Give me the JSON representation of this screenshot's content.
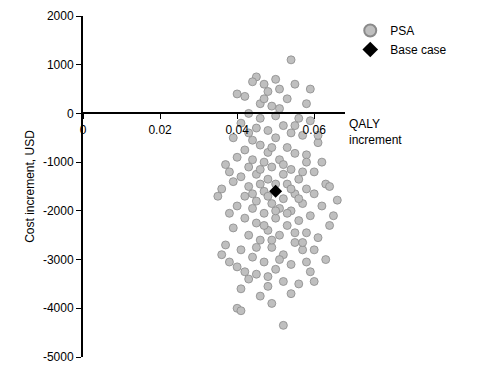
{
  "chart_data": {
    "type": "scatter",
    "x_label": "QALY increment",
    "y_label": "Cost increment, USD",
    "xlim": [
      0,
      0.068
    ],
    "xticks": [
      0,
      0.02,
      0.04,
      0.06
    ],
    "ylim": [
      -5000,
      2000
    ],
    "yticks": [
      2000,
      1000,
      0,
      -1000,
      -2000,
      -3000,
      -4000,
      -5000
    ],
    "grid": false,
    "legend": "upper right",
    "series": [
      {
        "name": "PSA",
        "color": "#bfbfbf",
        "marker": "circle",
        "x": [
          0.054,
          0.045,
          0.044,
          0.047,
          0.055,
          0.048,
          0.051,
          0.042,
          0.053,
          0.058,
          0.046,
          0.049,
          0.043,
          0.05,
          0.056,
          0.059,
          0.041,
          0.045,
          0.052,
          0.048,
          0.054,
          0.057,
          0.039,
          0.044,
          0.05,
          0.061,
          0.046,
          0.053,
          0.042,
          0.048,
          0.055,
          0.058,
          0.04,
          0.044,
          0.051,
          0.047,
          0.062,
          0.037,
          0.043,
          0.049,
          0.054,
          0.057,
          0.06,
          0.045,
          0.052,
          0.041,
          0.048,
          0.056,
          0.039,
          0.063,
          0.046,
          0.053,
          0.043,
          0.05,
          0.058,
          0.036,
          0.047,
          0.055,
          0.06,
          0.042,
          0.035,
          0.066,
          0.052,
          0.045,
          0.049,
          0.057,
          0.04,
          0.062,
          0.044,
          0.051,
          0.054,
          0.038,
          0.047,
          0.059,
          0.042,
          0.05,
          0.056,
          0.045,
          0.053,
          0.064,
          0.039,
          0.048,
          0.058,
          0.043,
          0.051,
          0.061,
          0.046,
          0.055,
          0.037,
          0.049,
          0.041,
          0.057,
          0.052,
          0.044,
          0.063,
          0.047,
          0.054,
          0.04,
          0.05,
          0.059,
          0.045,
          0.043,
          0.052,
          0.056,
          0.048,
          0.041,
          0.054,
          0.046,
          0.04,
          0.041,
          0.049,
          0.052,
          0.06,
          0.038,
          0.036,
          0.065,
          0.064,
          0.038,
          0.061,
          0.04,
          0.059,
          0.05,
          0.047,
          0.051,
          0.046,
          0.055,
          0.049,
          0.043,
          0.052,
          0.058,
          0.046,
          0.054,
          0.044,
          0.048,
          0.056,
          0.05,
          0.047,
          0.053,
          0.049,
          0.055,
          0.045,
          0.051,
          0.058,
          0.042,
          0.048,
          0.057,
          0.06
        ],
        "values": [
          1100,
          750,
          650,
          600,
          600,
          450,
          500,
          350,
          300,
          200,
          200,
          150,
          0,
          -50,
          -100,
          -150,
          -200,
          -300,
          -250,
          -350,
          -400,
          -450,
          -500,
          -550,
          -500,
          -600,
          -650,
          -700,
          -750,
          -800,
          -820,
          -850,
          -900,
          -950,
          -950,
          -1000,
          -1000,
          -1050,
          -1100,
          -1100,
          -1150,
          -1200,
          -1200,
          -1250,
          -1250,
          -1300,
          -1350,
          -1350,
          -1400,
          -1450,
          -1450,
          -1450,
          -1500,
          -1450,
          -1550,
          -1550,
          -1600,
          -1650,
          -1650,
          -1700,
          -1700,
          -1780,
          -1750,
          -1800,
          -1850,
          -1850,
          -1900,
          -1900,
          -1950,
          -1950,
          -2000,
          -2050,
          -2050,
          -2100,
          -2150,
          -2150,
          -2200,
          -2250,
          -2300,
          -2300,
          -2350,
          -2400,
          -2450,
          -2500,
          -2500,
          -2550,
          -2600,
          -2650,
          -2700,
          -2750,
          -2800,
          -2800,
          -2900,
          -2950,
          -3000,
          -3050,
          -3100,
          -3150,
          -3200,
          -3250,
          -3300,
          -3400,
          -3450,
          -3500,
          -3550,
          -3600,
          -3700,
          -3750,
          -4000,
          -4050,
          -3900,
          -4350,
          -3450,
          -3050,
          -2900,
          -2100,
          -1500,
          -1200,
          -450,
          400,
          500,
          700,
          300,
          100,
          -100,
          -250,
          -700,
          -400,
          -1050,
          -1000,
          -1150,
          -1550,
          -1650,
          -1700,
          -1750,
          -2000,
          -2300,
          -2050,
          -2600,
          -2450,
          -2750,
          -3000,
          -3050,
          -3250,
          -3350,
          -2650,
          -2800
        ]
      },
      {
        "name": "Base case",
        "color": "#000000",
        "marker": "diamond",
        "x": [
          0.05
        ],
        "values": [
          -1600
        ]
      }
    ]
  }
}
